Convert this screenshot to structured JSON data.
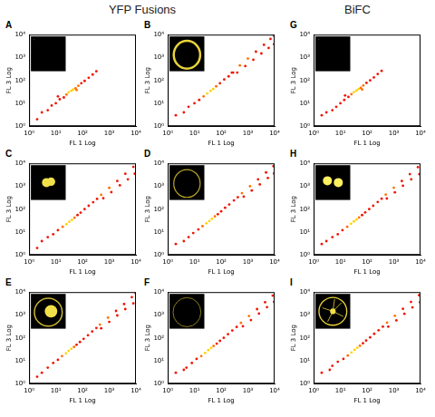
{
  "column_titles": [
    "YFP Fusions",
    "BiFC"
  ],
  "chart_data": [
    {
      "type": "scatter",
      "title": "A",
      "x_label": "FL 1 Log",
      "y_label": "FL 3 Log",
      "log": true,
      "grid": false,
      "xlim": [
        1,
        10000
      ],
      "ylim": [
        1,
        10000
      ],
      "xticks": [
        {
          "value": 1,
          "label": "10⁰"
        },
        {
          "value": 10,
          "label": "10¹"
        },
        {
          "value": 100,
          "label": "10²"
        },
        {
          "value": 1000,
          "label": "10³"
        },
        {
          "value": 10000,
          "label": "10⁴"
        }
      ],
      "yticks": [
        {
          "value": 1,
          "label": "10⁰"
        },
        {
          "value": 10,
          "label": "10¹"
        },
        {
          "value": 100,
          "label": "10²"
        },
        {
          "value": 1000,
          "label": "10³"
        },
        {
          "value": 10000,
          "label": "10⁴"
        }
      ],
      "x": [
        2,
        3,
        5,
        7,
        10,
        14,
        20,
        25,
        30,
        38,
        45,
        55,
        70,
        90,
        120,
        170,
        240,
        330,
        12,
        60
      ],
      "values": [
        2,
        4,
        5,
        8,
        10,
        15,
        18,
        24,
        30,
        35,
        40,
        45,
        58,
        75,
        95,
        130,
        180,
        250,
        20,
        38
      ],
      "colors": [
        "#f01400",
        "#f01400",
        "#f01400",
        "#f01400",
        "#f01400",
        "#f01400",
        "#f01400",
        "#ff7000",
        "#ffd200",
        "#ffd200",
        "#ffd200",
        "#ff7000",
        "#ff7000",
        "#f01400",
        "#f01400",
        "#f01400",
        "#f01400",
        "#f01400",
        "#f01400",
        "#ff7000"
      ]
    },
    {
      "type": "scatter",
      "title": "B",
      "x_label": "FL 1 Log",
      "y_label": "FL 3 Log",
      "log": true,
      "grid": false,
      "xlim": [
        1,
        10000
      ],
      "ylim": [
        1,
        10000
      ],
      "xticks": [
        {
          "value": 1,
          "label": "10⁰"
        },
        {
          "value": 10,
          "label": "10¹"
        },
        {
          "value": 100,
          "label": "10²"
        },
        {
          "value": 1000,
          "label": "10³"
        },
        {
          "value": 10000,
          "label": "10⁴"
        }
      ],
      "yticks": [
        {
          "value": 1,
          "label": "10⁰"
        },
        {
          "value": 10,
          "label": "10¹"
        },
        {
          "value": 100,
          "label": "10²"
        },
        {
          "value": 1000,
          "label": "10³"
        },
        {
          "value": 10000,
          "label": "10⁴"
        }
      ],
      "x": [
        2,
        4,
        6,
        10,
        15,
        22,
        30,
        40,
        50,
        65,
        90,
        130,
        190,
        280,
        250,
        500,
        1000,
        2000,
        4000,
        7000,
        9500,
        400,
        800,
        1600,
        3200,
        6000,
        9500
      ],
      "values": [
        3,
        4,
        7,
        10,
        14,
        20,
        27,
        35,
        42,
        55,
        75,
        110,
        150,
        220,
        220,
        450,
        900,
        1800,
        3600,
        6500,
        9000,
        220,
        420,
        800,
        1500,
        2600,
        3800
      ],
      "colors": [
        "#f01400",
        "#f01400",
        "#f01400",
        "#f01400",
        "#f01400",
        "#ff7000",
        "#ffd200",
        "#ffd200",
        "#ffd200",
        "#ff7000",
        "#f01400",
        "#f01400",
        "#f01400",
        "#f01400",
        "#f01400",
        "#ff7000",
        "#ff7000",
        "#f01400",
        "#f01400",
        "#f01400",
        "#f01400",
        "#f01400",
        "#f01400",
        "#f01400",
        "#f01400",
        "#f01400",
        "#f01400"
      ]
    },
    {
      "type": "scatter",
      "title": "C",
      "x_label": "FL 1 Log",
      "y_label": "FL 3 Log",
      "log": true,
      "grid": false,
      "xlim": [
        1,
        10000
      ],
      "ylim": [
        1,
        10000
      ],
      "xticks": [
        {
          "value": 1,
          "label": "10⁰"
        },
        {
          "value": 10,
          "label": "10¹"
        },
        {
          "value": 100,
          "label": "10²"
        },
        {
          "value": 1000,
          "label": "10³"
        },
        {
          "value": 10000,
          "label": "10⁴"
        }
      ],
      "yticks": [
        {
          "value": 1,
          "label": "10⁰"
        },
        {
          "value": 10,
          "label": "10¹"
        },
        {
          "value": 100,
          "label": "10²"
        },
        {
          "value": 1000,
          "label": "10³"
        },
        {
          "value": 10000,
          "label": "10⁴"
        }
      ],
      "x": [
        2,
        3,
        5,
        8,
        12,
        18,
        25,
        32,
        40,
        50,
        65,
        85,
        120,
        170,
        250,
        350,
        500,
        1000,
        2000,
        4000,
        8000,
        600,
        1200,
        2500,
        5000,
        9000
      ],
      "values": [
        2,
        4,
        6,
        8,
        12,
        17,
        22,
        28,
        34,
        42,
        55,
        70,
        100,
        140,
        200,
        280,
        420,
        850,
        1700,
        3500,
        7000,
        300,
        550,
        1100,
        2000,
        3500
      ],
      "colors": [
        "#f01400",
        "#f01400",
        "#f01400",
        "#f01400",
        "#f01400",
        "#ff7000",
        "#ffd200",
        "#ffd200",
        "#ffd200",
        "#ff7000",
        "#f01400",
        "#f01400",
        "#f01400",
        "#f01400",
        "#f01400",
        "#f01400",
        "#ff7000",
        "#ff7000",
        "#f01400",
        "#f01400",
        "#f01400",
        "#f01400",
        "#f01400",
        "#f01400",
        "#f01400",
        "#f01400"
      ]
    },
    {
      "type": "scatter",
      "title": "D",
      "x_label": "FL 1 Log",
      "y_label": "FL 3 Log",
      "log": true,
      "grid": false,
      "xlim": [
        1,
        10000
      ],
      "ylim": [
        1,
        10000
      ],
      "xticks": [
        {
          "value": 1,
          "label": "10⁰"
        },
        {
          "value": 10,
          "label": "10¹"
        },
        {
          "value": 100,
          "label": "10²"
        },
        {
          "value": 1000,
          "label": "10³"
        },
        {
          "value": 10000,
          "label": "10⁴"
        }
      ],
      "yticks": [
        {
          "value": 1,
          "label": "10⁰"
        },
        {
          "value": 10,
          "label": "10¹"
        },
        {
          "value": 100,
          "label": "10²"
        },
        {
          "value": 1000,
          "label": "10³"
        },
        {
          "value": 10000,
          "label": "10⁴"
        }
      ],
      "x": [
        2,
        4,
        6,
        9,
        14,
        20,
        28,
        36,
        45,
        58,
        75,
        100,
        140,
        200,
        300,
        420,
        600,
        1200,
        2400,
        4800,
        9000,
        700,
        1400,
        2800,
        5600,
        9500
      ],
      "values": [
        3,
        4,
        6,
        9,
        13,
        18,
        24,
        30,
        38,
        48,
        60,
        80,
        115,
        160,
        240,
        330,
        500,
        1000,
        2000,
        4000,
        7500,
        350,
        650,
        1200,
        2300,
        3600
      ],
      "colors": [
        "#f01400",
        "#f01400",
        "#f01400",
        "#f01400",
        "#f01400",
        "#ff7000",
        "#ffd200",
        "#ffd200",
        "#ffd200",
        "#ff7000",
        "#f01400",
        "#f01400",
        "#f01400",
        "#f01400",
        "#f01400",
        "#f01400",
        "#ff7000",
        "#ff7000",
        "#f01400",
        "#f01400",
        "#f01400",
        "#f01400",
        "#f01400",
        "#f01400",
        "#f01400",
        "#f01400"
      ]
    },
    {
      "type": "scatter",
      "title": "E",
      "x_label": "FL 1 Log",
      "y_label": "FL 3 Log",
      "log": true,
      "grid": false,
      "xlim": [
        1,
        10000
      ],
      "ylim": [
        1,
        10000
      ],
      "xticks": [
        {
          "value": 1,
          "label": "10⁰"
        },
        {
          "value": 10,
          "label": "10¹"
        },
        {
          "value": 100,
          "label": "10²"
        },
        {
          "value": 1000,
          "label": "10³"
        },
        {
          "value": 10000,
          "label": "10⁴"
        }
      ],
      "yticks": [
        {
          "value": 1,
          "label": "10⁰"
        },
        {
          "value": 10,
          "label": "10¹"
        },
        {
          "value": 100,
          "label": "10²"
        },
        {
          "value": 1000,
          "label": "10³"
        },
        {
          "value": 10000,
          "label": "10⁴"
        }
      ],
      "x": [
        2,
        3,
        5,
        8,
        12,
        17,
        24,
        30,
        38,
        48,
        60,
        80,
        110,
        160,
        230,
        330,
        450,
        900,
        1800,
        3600,
        7000,
        9800,
        500,
        1000,
        2000,
        4000,
        8000
      ],
      "values": [
        2,
        3,
        5,
        8,
        11,
        16,
        21,
        27,
        33,
        40,
        50,
        66,
        90,
        130,
        190,
        270,
        380,
        760,
        1500,
        3000,
        6000,
        8800,
        260,
        500,
        950,
        1800,
        3200
      ],
      "colors": [
        "#f01400",
        "#f01400",
        "#f01400",
        "#f01400",
        "#f01400",
        "#ff7000",
        "#ffd200",
        "#ffd200",
        "#ffd200",
        "#ff7000",
        "#f01400",
        "#f01400",
        "#f01400",
        "#f01400",
        "#f01400",
        "#f01400",
        "#ff7000",
        "#ff7000",
        "#f01400",
        "#f01400",
        "#f01400",
        "#f01400",
        "#f01400",
        "#f01400",
        "#f01400",
        "#f01400",
        "#f01400"
      ]
    },
    {
      "type": "scatter",
      "title": "F",
      "x_label": "FL 1 Log",
      "y_label": "FL 3 Log",
      "log": true,
      "grid": false,
      "xlim": [
        1,
        10000
      ],
      "ylim": [
        1,
        10000
      ],
      "xticks": [
        {
          "value": 1,
          "label": "10⁰"
        },
        {
          "value": 10,
          "label": "10¹"
        },
        {
          "value": 100,
          "label": "10²"
        },
        {
          "value": 1000,
          "label": "10³"
        },
        {
          "value": 10000,
          "label": "10⁴"
        }
      ],
      "yticks": [
        {
          "value": 1,
          "label": "10⁰"
        },
        {
          "value": 10,
          "label": "10¹"
        },
        {
          "value": 100,
          "label": "10²"
        },
        {
          "value": 1000,
          "label": "10³"
        },
        {
          "value": 10000,
          "label": "10⁴"
        }
      ],
      "x": [
        2,
        4,
        5,
        8,
        12,
        18,
        25,
        33,
        42,
        52,
        68,
        90,
        125,
        180,
        260,
        380,
        550,
        1100,
        2200,
        4400,
        8500,
        650,
        1300,
        2600,
        5200,
        9500
      ],
      "values": [
        3,
        4,
        5,
        8,
        12,
        16,
        22,
        29,
        36,
        44,
        56,
        74,
        100,
        145,
        210,
        300,
        450,
        900,
        1800,
        3600,
        7000,
        320,
        600,
        1150,
        2200,
        3700
      ],
      "colors": [
        "#f01400",
        "#f01400",
        "#f01400",
        "#f01400",
        "#f01400",
        "#ff7000",
        "#ffd200",
        "#ffd200",
        "#ffd200",
        "#ff7000",
        "#f01400",
        "#f01400",
        "#f01400",
        "#f01400",
        "#f01400",
        "#f01400",
        "#ff7000",
        "#ff7000",
        "#f01400",
        "#f01400",
        "#f01400",
        "#f01400",
        "#f01400",
        "#f01400",
        "#f01400",
        "#f01400"
      ]
    },
    {
      "type": "scatter",
      "title": "G",
      "x_label": "FL 1 Log",
      "y_label": "FL 3 Log",
      "log": true,
      "grid": false,
      "xlim": [
        1,
        10000
      ],
      "ylim": [
        1,
        10000
      ],
      "xticks": [
        {
          "value": 1,
          "label": "10⁰"
        },
        {
          "value": 10,
          "label": "10¹"
        },
        {
          "value": 100,
          "label": "10²"
        },
        {
          "value": 1000,
          "label": "10³"
        },
        {
          "value": 10000,
          "label": "10⁴"
        }
      ],
      "yticks": [
        {
          "value": 1,
          "label": "10⁰"
        },
        {
          "value": 10,
          "label": "10¹"
        },
        {
          "value": 100,
          "label": "10²"
        },
        {
          "value": 1000,
          "label": "10³"
        },
        {
          "value": 10000,
          "label": "10⁴"
        }
      ],
      "x": [
        2,
        3,
        5,
        7,
        10,
        14,
        20,
        26,
        32,
        40,
        48,
        58,
        72,
        95,
        130,
        180,
        250,
        350,
        15,
        65
      ],
      "values": [
        3,
        4,
        5,
        7,
        10,
        14,
        19,
        25,
        31,
        36,
        42,
        47,
        60,
        78,
        100,
        135,
        190,
        260,
        22,
        40
      ],
      "colors": [
        "#f01400",
        "#f01400",
        "#f01400",
        "#f01400",
        "#f01400",
        "#f01400",
        "#f01400",
        "#ff7000",
        "#ffd200",
        "#ffd200",
        "#ffd200",
        "#ff7000",
        "#ff7000",
        "#f01400",
        "#f01400",
        "#f01400",
        "#f01400",
        "#f01400",
        "#f01400",
        "#ff7000"
      ]
    },
    {
      "type": "scatter",
      "title": "H",
      "x_label": "FL 1 Log",
      "y_label": "FL 3 Log",
      "log": true,
      "grid": false,
      "xlim": [
        1,
        10000
      ],
      "ylim": [
        1,
        10000
      ],
      "xticks": [
        {
          "value": 1,
          "label": "10⁰"
        },
        {
          "value": 10,
          "label": "10¹"
        },
        {
          "value": 100,
          "label": "10²"
        },
        {
          "value": 1000,
          "label": "10³"
        },
        {
          "value": 10000,
          "label": "10⁴"
        }
      ],
      "yticks": [
        {
          "value": 1,
          "label": "10⁰"
        },
        {
          "value": 10,
          "label": "10¹"
        },
        {
          "value": 100,
          "label": "10²"
        },
        {
          "value": 1000,
          "label": "10³"
        },
        {
          "value": 10000,
          "label": "10⁴"
        }
      ],
      "x": [
        2,
        3,
        5,
        8,
        12,
        18,
        25,
        32,
        40,
        50,
        65,
        85,
        120,
        170,
        250,
        350,
        500,
        1000,
        2000,
        4000,
        8000,
        550,
        1100,
        2200,
        4500,
        9000
      ],
      "values": [
        3,
        4,
        6,
        8,
        12,
        17,
        23,
        29,
        35,
        43,
        55,
        72,
        100,
        140,
        205,
        285,
        430,
        860,
        1700,
        3400,
        6800,
        290,
        540,
        1050,
        2000,
        3400
      ],
      "colors": [
        "#f01400",
        "#f01400",
        "#f01400",
        "#f01400",
        "#f01400",
        "#ff7000",
        "#ffd200",
        "#ffd200",
        "#ffd200",
        "#ff7000",
        "#f01400",
        "#f01400",
        "#f01400",
        "#f01400",
        "#f01400",
        "#f01400",
        "#ff7000",
        "#ff7000",
        "#f01400",
        "#f01400",
        "#f01400",
        "#f01400",
        "#f01400",
        "#f01400",
        "#f01400",
        "#f01400"
      ]
    },
    {
      "type": "scatter",
      "title": "I",
      "x_label": "FL 1 Log",
      "y_label": "FL 3 Log",
      "log": true,
      "grid": false,
      "xlim": [
        1,
        10000
      ],
      "ylim": [
        1,
        10000
      ],
      "xticks": [
        {
          "value": 1,
          "label": "10⁰"
        },
        {
          "value": 10,
          "label": "10¹"
        },
        {
          "value": 100,
          "label": "10²"
        },
        {
          "value": 1000,
          "label": "10³"
        },
        {
          "value": 10000,
          "label": "10⁴"
        }
      ],
      "yticks": [
        {
          "value": 1,
          "label": "10⁰"
        },
        {
          "value": 10,
          "label": "10¹"
        },
        {
          "value": 100,
          "label": "10²"
        },
        {
          "value": 1000,
          "label": "10³"
        },
        {
          "value": 10000,
          "label": "10⁴"
        }
      ],
      "x": [
        2,
        4,
        5,
        8,
        13,
        19,
        26,
        34,
        43,
        54,
        70,
        92,
        130,
        185,
        270,
        390,
        560,
        1100,
        2200,
        4400,
        8800,
        620,
        1250,
        2500,
        5000,
        9600
      ],
      "values": [
        3,
        4,
        6,
        9,
        12,
        17,
        23,
        30,
        37,
        45,
        58,
        76,
        105,
        150,
        215,
        310,
        460,
        920,
        1850,
        3700,
        7300,
        310,
        580,
        1120,
        2150,
        3600
      ],
      "colors": [
        "#f01400",
        "#f01400",
        "#f01400",
        "#f01400",
        "#f01400",
        "#ff7000",
        "#ffd200",
        "#ffd200",
        "#ffd200",
        "#ff7000",
        "#f01400",
        "#f01400",
        "#f01400",
        "#f01400",
        "#f01400",
        "#f01400",
        "#ff7000",
        "#ff7000",
        "#f01400",
        "#f01400",
        "#f01400",
        "#f01400",
        "#f01400",
        "#f01400",
        "#f01400",
        "#f01400"
      ]
    }
  ]
}
